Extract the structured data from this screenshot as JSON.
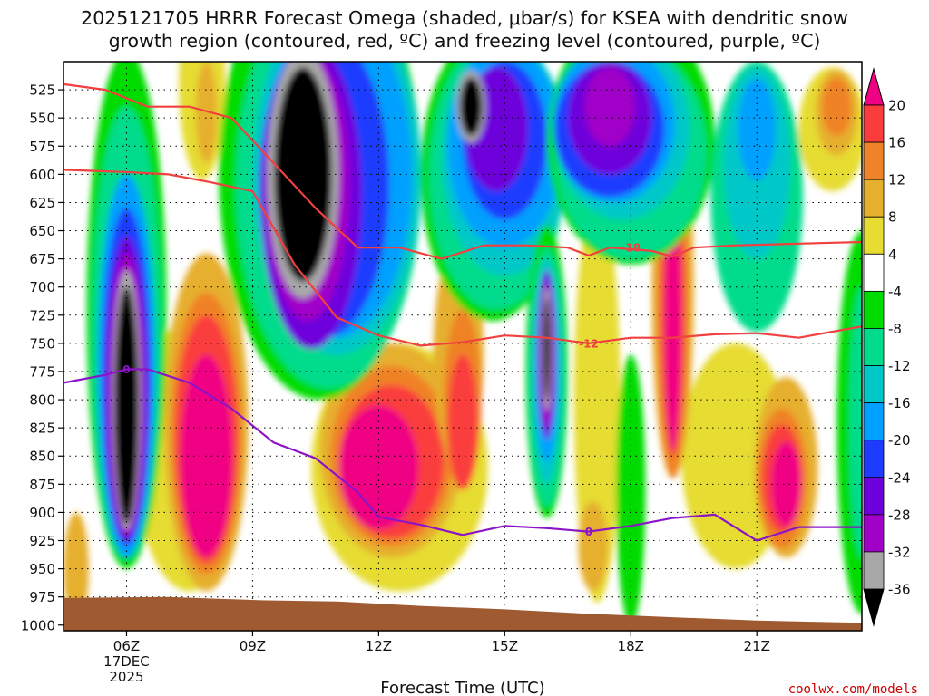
{
  "title_line1": "2025121705 HRRR Forecast Omega (shaded, μbar/s) for KSEA with dendritic snow",
  "title_line2": "growth region (contoured, red, ºC) and freezing level (contoured, purple, ºC)",
  "credit": "coolwx.com/models",
  "chart_data": {
    "type": "heatmap",
    "xlabel": "Forecast Time (UTC)",
    "ylabel": "",
    "x_range_hours": [
      4.5,
      23.5
    ],
    "x_ticks": [
      {
        "hour": 6,
        "label": "06Z",
        "sub1": "17DEC",
        "sub2": "2025"
      },
      {
        "hour": 9,
        "label": "09Z"
      },
      {
        "hour": 12,
        "label": "12Z"
      },
      {
        "hour": 15,
        "label": "15Z"
      },
      {
        "hour": 18,
        "label": "18Z"
      },
      {
        "hour": 21,
        "label": "21Z"
      }
    ],
    "y_ticks_hpa": [
      525,
      550,
      575,
      600,
      625,
      650,
      675,
      700,
      725,
      750,
      775,
      800,
      825,
      850,
      875,
      900,
      925,
      950,
      975,
      1000
    ],
    "y_range_hpa": [
      500,
      1005
    ],
    "colorbar": {
      "levels": [
        -36,
        -32,
        -28,
        -24,
        -20,
        -16,
        -12,
        -8,
        -4,
        4,
        8,
        12,
        16,
        20
      ],
      "labels": [
        "-36",
        "-32",
        "-28",
        "-24",
        "-20",
        "-16",
        "-12",
        "-8",
        "-4",
        "4",
        "8",
        "12",
        "16",
        "20"
      ],
      "colors": [
        "#000000",
        "#a8a8a8",
        "#a000c8",
        "#6e00dc",
        "#1e3cff",
        "#00a0ff",
        "#00c8c8",
        "#00dc8c",
        "#00dc00",
        "#ffffff",
        "#e6dc32",
        "#e6af2d",
        "#f08228",
        "#fa3c3c",
        "#f00082"
      ]
    },
    "dendritic_contours": [
      {
        "label": "-18",
        "points": [
          [
            4.5,
            520
          ],
          [
            5.5,
            525
          ],
          [
            6.5,
            540
          ],
          [
            7.5,
            540
          ],
          [
            8.5,
            550
          ],
          [
            9.5,
            590
          ],
          [
            10.5,
            630
          ],
          [
            11.5,
            665
          ],
          [
            12.5,
            665
          ],
          [
            13.5,
            675
          ],
          [
            14.5,
            663
          ],
          [
            15.5,
            663
          ],
          [
            16.5,
            665
          ],
          [
            17,
            672
          ],
          [
            17.5,
            665
          ],
          [
            18.5,
            668
          ],
          [
            19,
            673
          ],
          [
            19.5,
            665
          ],
          [
            20.5,
            663
          ],
          [
            21.5,
            662
          ],
          [
            22.5,
            661
          ],
          [
            23.5,
            660
          ]
        ]
      },
      {
        "label": "-12",
        "points": [
          [
            4.5,
            596
          ],
          [
            6,
            598
          ],
          [
            7,
            600
          ],
          [
            8,
            607
          ],
          [
            9,
            615
          ],
          [
            10,
            680
          ],
          [
            11,
            727
          ],
          [
            12,
            743
          ],
          [
            13,
            752
          ],
          [
            14,
            749
          ],
          [
            15,
            743
          ],
          [
            16,
            745
          ],
          [
            17,
            750
          ],
          [
            18,
            745
          ],
          [
            19,
            745
          ],
          [
            20,
            742
          ],
          [
            21,
            741
          ],
          [
            22,
            745
          ],
          [
            23.5,
            735
          ]
        ]
      }
    ],
    "freezing_level": {
      "label": "0",
      "points": [
        [
          4.5,
          785
        ],
        [
          5.5,
          778
        ],
        [
          6,
          773
        ],
        [
          6.5,
          773
        ],
        [
          7.5,
          785
        ],
        [
          8.5,
          808
        ],
        [
          9.5,
          838
        ],
        [
          10.5,
          852
        ],
        [
          11.5,
          882
        ],
        [
          12,
          904
        ],
        [
          13,
          911
        ],
        [
          14,
          920
        ],
        [
          15,
          912
        ],
        [
          16,
          914
        ],
        [
          17,
          917
        ],
        [
          18,
          912
        ],
        [
          19,
          905
        ],
        [
          20,
          902
        ],
        [
          21,
          925
        ],
        [
          22,
          913
        ],
        [
          23.5,
          913
        ]
      ]
    },
    "terrain_fill": "#a05a32"
  }
}
